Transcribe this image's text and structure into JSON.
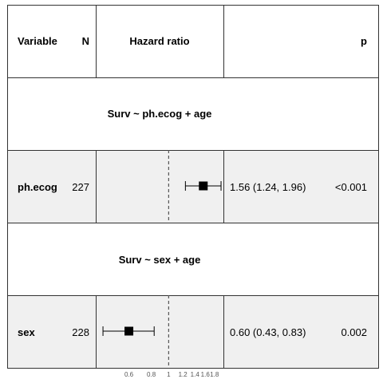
{
  "colors": {
    "row_shaded": "#f0f0f0",
    "row_plain": "#ffffff",
    "border": "#333333",
    "mark": "#000000",
    "reference_line": "#555555"
  },
  "header": {
    "variable": "Variable",
    "n": "N",
    "hazard_ratio": "Hazard ratio",
    "p": "p"
  },
  "chart_data": {
    "type": "forest",
    "x_scale": "log",
    "xlim": [
      0.4,
      2.0
    ],
    "reference_line": 1,
    "x_ticks": [
      0.6,
      0.8,
      1,
      1.2,
      1.4,
      1.6,
      1.8
    ],
    "x_tick_labels": [
      "0.6",
      "0.8",
      "1",
      "1.2",
      "1.4",
      "1.6",
      "1.8"
    ],
    "groups": [
      {
        "formula": "Surv ~ ph.ecog + age",
        "rows": [
          {
            "variable": "ph.ecog",
            "n": "227",
            "hr": 1.56,
            "lower": 1.24,
            "upper": 1.96,
            "hr_text": "1.56 (1.24, 1.96)",
            "p": "<0.001"
          }
        ]
      },
      {
        "formula": "Surv ~ sex + age",
        "rows": [
          {
            "variable": "sex",
            "n": "228",
            "hr": 0.6,
            "lower": 0.43,
            "upper": 0.83,
            "hr_text": "0.60 (0.43, 0.83)",
            "p": "0.002"
          }
        ]
      }
    ]
  }
}
